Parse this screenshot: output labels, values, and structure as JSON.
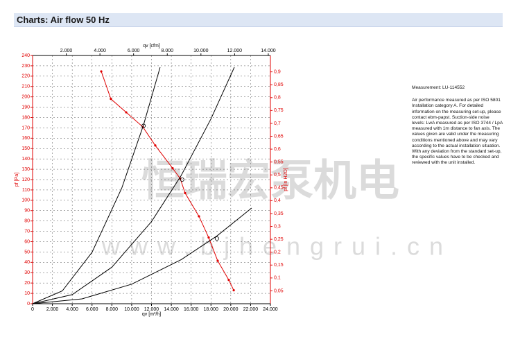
{
  "header": {
    "title": "Charts: Air flow 50 Hz"
  },
  "chart_data": {
    "type": "line",
    "xlabel": "qv [m³/h]",
    "ylabel": "pf [Pa]",
    "x2label": "qv [cfm]",
    "y2label": "pf [in H2O]",
    "xlim": [
      0,
      24000
    ],
    "xticks": [
      0,
      {
        "value": 2000,
        "label": "2.000"
      },
      {
        "value": 4000,
        "label": "4.000"
      },
      {
        "value": 6000,
        "label": "6.000"
      },
      {
        "value": 8000,
        "label": "8.000"
      },
      {
        "value": 10000,
        "label": "10.000"
      },
      {
        "value": 12000,
        "label": "12.000"
      },
      {
        "value": 14000,
        "label": "14.000"
      },
      {
        "value": 16000,
        "label": "16.000"
      },
      {
        "value": 18000,
        "label": "18.000"
      },
      {
        "value": 20000,
        "label": "20.000"
      },
      {
        "value": 22000,
        "label": "22.000"
      },
      {
        "value": 24000,
        "label": "24.000"
      }
    ],
    "x2lim": [
      0,
      14126
    ],
    "x2ticks": [
      {
        "value": 2000,
        "label": "2.000"
      },
      {
        "value": 4000,
        "label": "4.000"
      },
      {
        "value": 6000,
        "label": "6.000"
      },
      {
        "value": 8000,
        "label": "8.000"
      },
      {
        "value": 10000,
        "label": "10.000"
      },
      {
        "value": 12000,
        "label": "12.000"
      },
      {
        "value": 14000,
        "label": "14.000"
      }
    ],
    "ylim": [
      0,
      240
    ],
    "yticks": [
      0,
      10,
      20,
      30,
      40,
      50,
      60,
      70,
      80,
      90,
      100,
      110,
      120,
      130,
      140,
      150,
      160,
      170,
      180,
      190,
      200,
      210,
      220,
      230,
      240
    ],
    "y2lim": [
      0,
      0.9636
    ],
    "y2ticks": [
      {
        "value": 0.05,
        "label": "0,05"
      },
      {
        "value": 0.1,
        "label": "0,1"
      },
      {
        "value": 0.15,
        "label": "0,15"
      },
      {
        "value": 0.2,
        "label": "0,2"
      },
      {
        "value": 0.25,
        "label": "0,25"
      },
      {
        "value": 0.3,
        "label": "0,3"
      },
      {
        "value": 0.35,
        "label": "0,35"
      },
      {
        "value": 0.4,
        "label": "0,4"
      },
      {
        "value": 0.45,
        "label": "0,45"
      },
      {
        "value": 0.5,
        "label": "0,5"
      },
      {
        "value": 0.55,
        "label": "0,55"
      },
      {
        "value": 0.6,
        "label": "0,6"
      },
      {
        "value": 0.65,
        "label": "0,65"
      },
      {
        "value": 0.7,
        "label": "0,7"
      },
      {
        "value": 0.75,
        "label": "0,75"
      },
      {
        "value": 0.8,
        "label": "0,8"
      },
      {
        "value": 0.85,
        "label": "0,85"
      },
      {
        "value": 0.9,
        "label": "0,9"
      }
    ],
    "grid": true,
    "axis_color": "#e00000",
    "series": [
      {
        "color": "#e00000",
        "markers": true,
        "x": [
          6930,
          7900,
          9450,
          11120,
          12380,
          14130,
          14900,
          15390,
          16790,
          17770,
          18680,
          19800,
          20300
        ],
        "values": [
          224.6,
          198,
          185,
          171,
          153,
          131,
          121,
          107,
          84.5,
          64,
          41.5,
          23,
          13
        ]
      },
      {
        "color": "#000000",
        "markers": false,
        "x": [
          0,
          3000,
          6000,
          9000,
          11200,
          12870
        ],
        "values": [
          0,
          12.4,
          49.7,
          111.8,
          173,
          228.6
        ]
      },
      {
        "color": "#000000",
        "markers": false,
        "x": [
          0,
          4000,
          8000,
          12000,
          15000,
          18000,
          20360
        ],
        "values": [
          0,
          8.8,
          35.3,
          79.4,
          124,
          178.7,
          228.6
        ]
      },
      {
        "color": "#000000",
        "markers": false,
        "x": [
          0,
          5000,
          10000,
          15000,
          18600,
          22110
        ],
        "values": [
          0,
          4.7,
          18.9,
          42.6,
          65.5,
          92.5
        ]
      }
    ],
    "operating_points": {
      "x": [
        11200,
        15100,
        18600
      ],
      "values": [
        172,
        120,
        63
      ]
    }
  },
  "watermark": {
    "company": "恒瑞宏泵机电",
    "url": "www.bjhengrui.cn"
  },
  "notes": {
    "measurement": "Measurement: LU-114552",
    "text": "Air performance measured as per ISO 5801 Installation category A. For detailed information on the measuring set-up, please contact ebm-papst. Suction-side noise levels: LwA measured as per ISO 3744 / LpA measured with 1m distance to fan axis. The values given are valid under the measuring conditions mentioned above and may vary according to the actual installation situation. With any deviation from the standard set-up, the specific values have to be checked and reviewed with the unit installed."
  }
}
